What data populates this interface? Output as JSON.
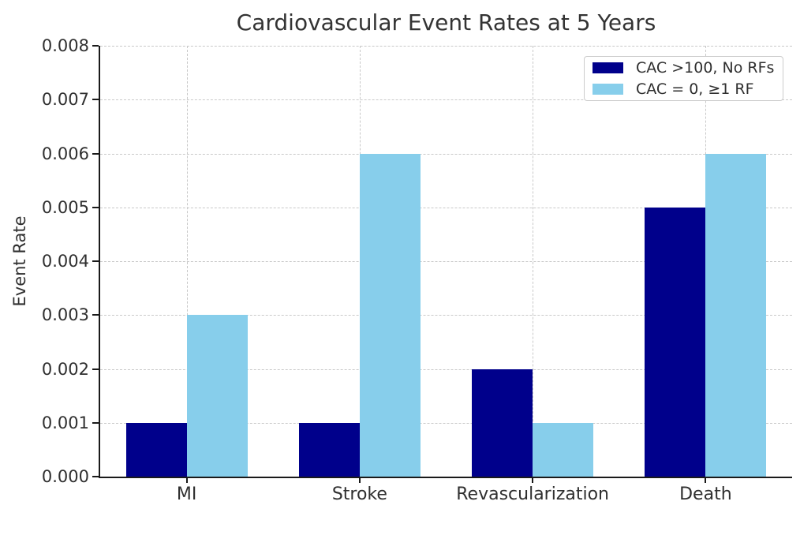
{
  "chart_data": {
    "type": "bar",
    "title": "Cardiovascular Event Rates at 5 Years",
    "ylabel": "Event Rate",
    "categories": [
      "MI",
      "Stroke",
      "Revascularization",
      "Death"
    ],
    "series": [
      {
        "name": "CAC >100, No RFs",
        "color": "#00008B",
        "values": [
          0.001,
          0.001,
          0.002,
          0.005
        ]
      },
      {
        "name": "CAC = 0, ≥1 RF",
        "color": "#87CEEB",
        "values": [
          0.003,
          0.006,
          0.001,
          0.006
        ]
      }
    ],
    "ylim": [
      0,
      0.008
    ],
    "ytick_values": [
      0,
      0.001,
      0.002,
      0.003,
      0.004,
      0.005,
      0.006,
      0.007,
      0.008
    ],
    "ytick_labels": [
      "0.000",
      "0.001",
      "0.002",
      "0.003",
      "0.004",
      "0.005",
      "0.006",
      "0.007",
      "0.008"
    ],
    "grid": true,
    "grid_style": "dashed",
    "legend_position": "upper right",
    "background": "#ffffff"
  }
}
